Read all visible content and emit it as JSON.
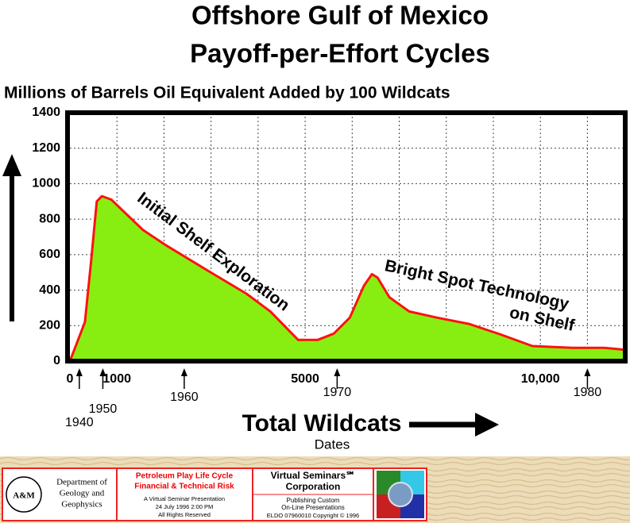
{
  "chart_data": {
    "type": "area",
    "title": [
      "Offshore Gulf of Mexico",
      "Payoff-per-Effort Cycles"
    ],
    "y_label": "Millions of Barrels Oil Equivalent Added by 100 Wildcats",
    "x_label": "Total Wildcats",
    "x2_label": "Dates",
    "x": [
      0,
      320,
      450,
      570,
      680,
      880,
      1550,
      2060,
      2900,
      3750,
      4260,
      4850,
      5270,
      5610,
      5950,
      6250,
      6420,
      6540,
      6790,
      7210,
      7800,
      8480,
      9160,
      9830,
      10680,
      11350,
      11770
    ],
    "values": [
      0,
      220,
      560,
      900,
      930,
      910,
      740,
      650,
      515,
      380,
      280,
      120,
      120,
      155,
      245,
      425,
      490,
      470,
      360,
      280,
      245,
      210,
      150,
      85,
      75,
      75,
      65
    ],
    "color": "#88ee11",
    "line_color": "#ff1111",
    "xlim": [
      0,
      11770
    ],
    "ylim": [
      0,
      1400
    ],
    "xticks": [
      0,
      1000,
      5000,
      {
        "value": 10000,
        "label": "10,000"
      }
    ],
    "x_grid_lines": [
      1000,
      2000,
      3000,
      4000,
      5000,
      6000,
      7000,
      8000,
      9000,
      10000,
      11000
    ],
    "yticks": [
      0,
      200,
      400,
      600,
      800,
      1000,
      1200,
      1400
    ],
    "grid": true,
    "annotations": [
      "Initial Shelf Exploration",
      "Bright Spot Technology",
      "on Shelf"
    ],
    "date_markers": [
      {
        "label": "1940",
        "x": 200
      },
      {
        "label": "1950",
        "x": 700
      },
      {
        "label": "1960",
        "x": 2430
      },
      {
        "label": "1970",
        "x": 5680
      },
      {
        "label": "1980",
        "x": 11000
      }
    ]
  },
  "footer": {
    "department": [
      "Department of",
      "Geology and",
      "Geophysics"
    ],
    "logo": "A&M",
    "seminar": [
      "Petroleum Play Life Cycle",
      "Financial & Technical Risk"
    ],
    "presentation": [
      "A Virtual Seminar Presentation",
      "24 July 1996  2:00 PM",
      "All Rights Reserved"
    ],
    "company": [
      "Virtual Seminars℠",
      "Corporation"
    ],
    "publishing": [
      "Publishing Custom",
      "On-Line Presentations"
    ],
    "copyright": "ELDO 07960010 Copyright © 1996"
  }
}
